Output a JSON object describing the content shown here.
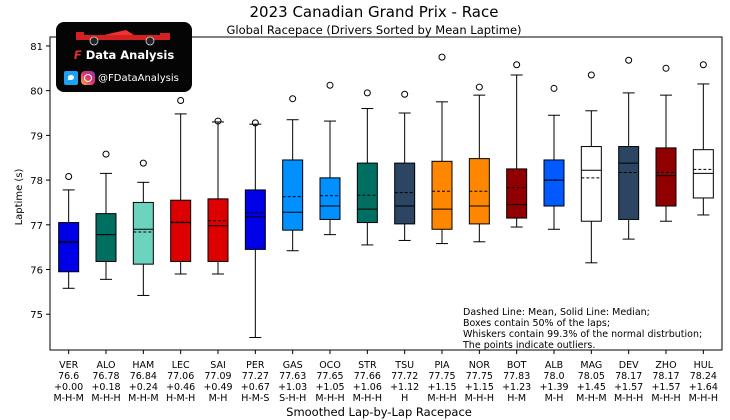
{
  "chart_data": {
    "type": "box",
    "title": "2023 Canadian Grand Prix - Race",
    "subtitle": "Global Racepace (Drivers Sorted by Mean Laptime)",
    "xlabel": "Smoothed Lap-by-Lap Racepace",
    "ylabel": "Laptime (s)",
    "ylim": [
      74.2,
      81.2
    ],
    "yticks": [
      75,
      76,
      77,
      78,
      79,
      80,
      81
    ],
    "legend_placement": "bottom-right",
    "note_lines": [
      "Dashed Line: Mean, Solid Line: Median;",
      "Boxes contain 50% of the laps;",
      "Whiskers contain 99.3% of the normal distrbution;",
      "The points indicate outliers."
    ],
    "drivers": [
      {
        "code": "VER",
        "mean": "76.6",
        "delta": "+0.00",
        "tyres": "M-H-M",
        "color": "#0000e8",
        "whislo": 75.58,
        "q1": 75.95,
        "median": 76.62,
        "q3": 77.05,
        "whishi": 77.78,
        "mean_value": 76.6,
        "fliers": [
          78.08
        ]
      },
      {
        "code": "ALO",
        "mean": "76.78",
        "delta": "+0.18",
        "tyres": "M-H-H",
        "color": "#006f62",
        "whislo": 75.78,
        "q1": 76.18,
        "median": 76.78,
        "q3": 77.25,
        "whishi": 78.15,
        "mean_value": 76.78,
        "fliers": [
          78.58
        ]
      },
      {
        "code": "HAM",
        "mean": "76.84",
        "delta": "+0.24",
        "tyres": "M-H-M",
        "color": "#6cd3bf",
        "whislo": 75.42,
        "q1": 76.12,
        "median": 76.9,
        "q3": 77.5,
        "whishi": 77.95,
        "mean_value": 76.84,
        "fliers": [
          78.38
        ]
      },
      {
        "code": "LEC",
        "mean": "77.06",
        "delta": "+0.46",
        "tyres": "H-M-H",
        "color": "#dc0000",
        "whislo": 75.9,
        "q1": 76.18,
        "median": 77.05,
        "q3": 77.55,
        "whishi": 79.48,
        "mean_value": 77.06,
        "fliers": [
          79.78
        ]
      },
      {
        "code": "SAI",
        "mean": "77.09",
        "delta": "+0.49",
        "tyres": "M-H",
        "color": "#dc0000",
        "whislo": 75.9,
        "q1": 76.18,
        "median": 76.98,
        "q3": 77.58,
        "whishi": 79.3,
        "mean_value": 77.09,
        "fliers": [
          79.32
        ]
      },
      {
        "code": "PER",
        "mean": "77.27",
        "delta": "+0.67",
        "tyres": "H-M-S",
        "color": "#0000e8",
        "whislo": 74.48,
        "q1": 76.45,
        "median": 77.18,
        "q3": 77.78,
        "whishi": 79.25,
        "mean_value": 77.27,
        "fliers": [
          79.28
        ]
      },
      {
        "code": "GAS",
        "mean": "77.63",
        "delta": "+1.03",
        "tyres": "S-H-H",
        "color": "#0090ff",
        "whislo": 76.42,
        "q1": 76.88,
        "median": 77.28,
        "q3": 78.45,
        "whishi": 79.35,
        "mean_value": 77.63,
        "fliers": [
          79.82
        ]
      },
      {
        "code": "OCO",
        "mean": "77.65",
        "delta": "+1.05",
        "tyres": "M-H-H",
        "color": "#0090ff",
        "whislo": 76.78,
        "q1": 77.12,
        "median": 77.42,
        "q3": 78.05,
        "whishi": 79.32,
        "mean_value": 77.65,
        "fliers": [
          80.12
        ]
      },
      {
        "code": "STR",
        "mean": "77.66",
        "delta": "+1.06",
        "tyres": "M-H-H",
        "color": "#006f62",
        "whislo": 76.55,
        "q1": 77.05,
        "median": 77.35,
        "q3": 78.38,
        "whishi": 79.6,
        "mean_value": 77.66,
        "fliers": [
          79.95
        ]
      },
      {
        "code": "TSU",
        "mean": "77.72",
        "delta": "+1.12",
        "tyres": "H",
        "color": "#2b4562",
        "whislo": 76.65,
        "q1": 77.02,
        "median": 77.42,
        "q3": 78.38,
        "whishi": 79.5,
        "mean_value": 77.72,
        "fliers": [
          79.92
        ]
      },
      {
        "code": "PIA",
        "mean": "77.75",
        "delta": "+1.15",
        "tyres": "M-H-H",
        "color": "#ff8700",
        "whislo": 76.58,
        "q1": 76.9,
        "median": 77.35,
        "q3": 78.42,
        "whishi": 79.75,
        "mean_value": 77.75,
        "fliers": [
          80.75
        ]
      },
      {
        "code": "NOR",
        "mean": "77.75",
        "delta": "+1.15",
        "tyres": "M-H-H",
        "color": "#ff8700",
        "whislo": 76.62,
        "q1": 77.02,
        "median": 77.42,
        "q3": 78.48,
        "whishi": 79.9,
        "mean_value": 77.75,
        "fliers": [
          80.08
        ]
      },
      {
        "code": "BOT",
        "mean": "77.83",
        "delta": "+1.23",
        "tyres": "H-M",
        "color": "#900000",
        "whislo": 76.95,
        "q1": 77.15,
        "median": 77.45,
        "q3": 78.25,
        "whishi": 80.35,
        "mean_value": 77.83,
        "fliers": [
          80.58
        ]
      },
      {
        "code": "ALB",
        "mean": "78.0",
        "delta": "+1.39",
        "tyres": "M-H",
        "color": "#005aff",
        "whislo": 76.9,
        "q1": 77.42,
        "median": 78.0,
        "q3": 78.45,
        "whishi": 79.45,
        "mean_value": 78.0,
        "fliers": [
          80.05
        ]
      },
      {
        "code": "MAG",
        "mean": "78.05",
        "delta": "+1.45",
        "tyres": "M-H-M",
        "color": "#ffffff",
        "whislo": 76.15,
        "q1": 77.08,
        "median": 78.22,
        "q3": 78.75,
        "whishi": 79.55,
        "mean_value": 78.05,
        "fliers": [
          80.35
        ]
      },
      {
        "code": "DEV",
        "mean": "78.17",
        "delta": "+1.57",
        "tyres": "M-H-H",
        "color": "#2b4562",
        "whislo": 76.68,
        "q1": 77.12,
        "median": 78.38,
        "q3": 78.75,
        "whishi": 79.95,
        "mean_value": 78.17,
        "fliers": [
          80.68
        ]
      },
      {
        "code": "ZHO",
        "mean": "78.17",
        "delta": "+1.57",
        "tyres": "M-H-H",
        "color": "#900000",
        "whislo": 77.08,
        "q1": 77.42,
        "median": 78.1,
        "q3": 78.72,
        "whishi": 79.9,
        "mean_value": 78.17,
        "fliers": [
          80.5
        ]
      },
      {
        "code": "HUL",
        "mean": "78.24",
        "delta": "+1.64",
        "tyres": "M-H-H",
        "color": "#ffffff",
        "whislo": 77.22,
        "q1": 77.6,
        "median": 78.15,
        "q3": 78.68,
        "whishi": 80.15,
        "mean_value": 78.24,
        "fliers": [
          80.58
        ]
      }
    ]
  },
  "logo": {
    "brand_letter": "F",
    "brand_text": "Data Analysis",
    "handle": "@FDataAnalysis",
    "icons": [
      "twitter-icon",
      "instagram-icon",
      "race-car-icon"
    ]
  }
}
